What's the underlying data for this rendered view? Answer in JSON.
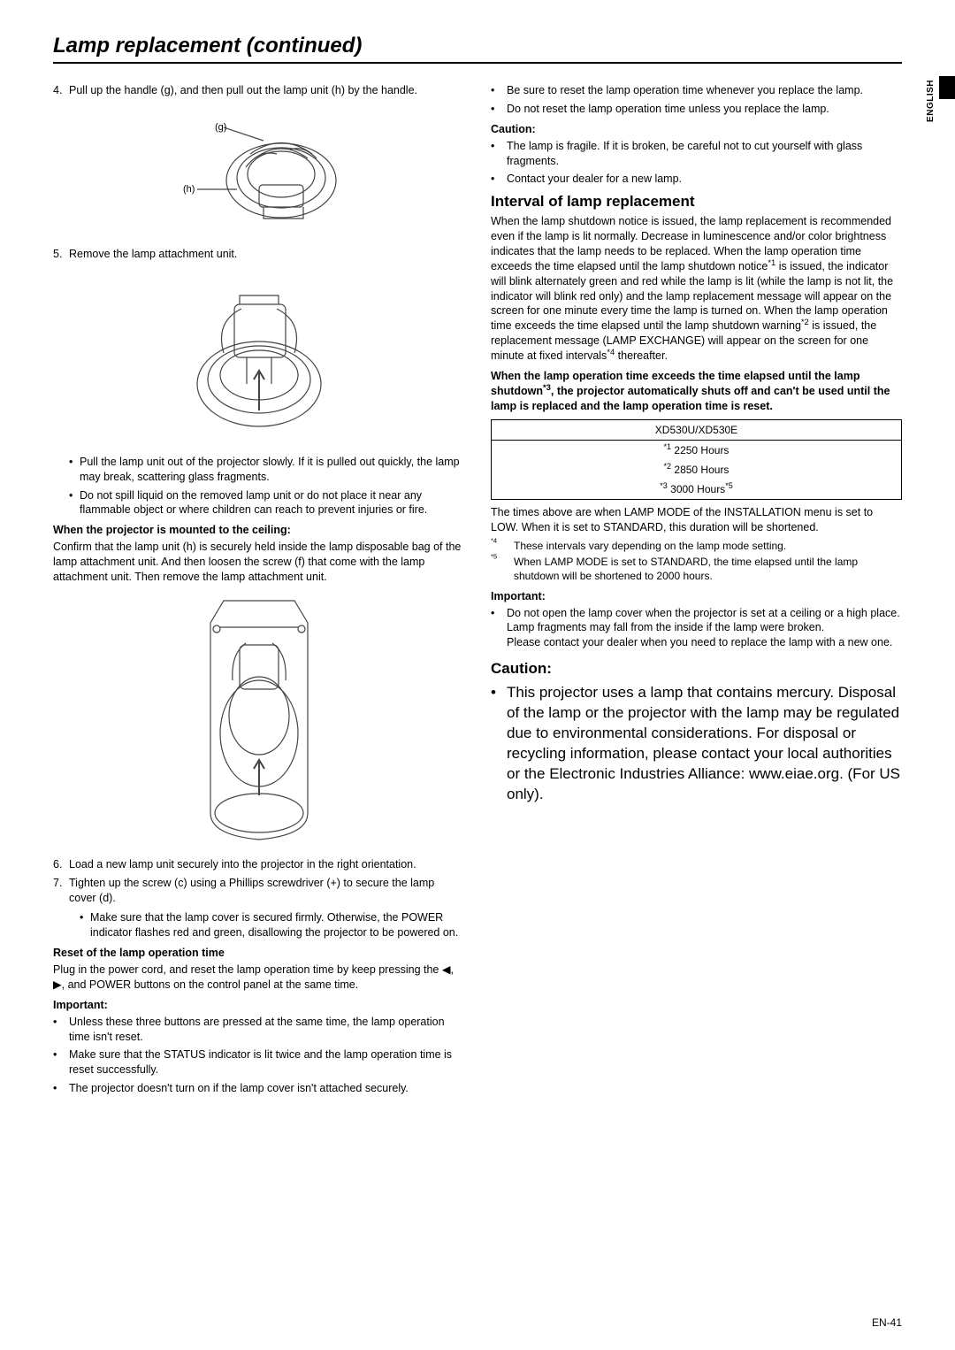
{
  "page_title": "Lamp replacement (continued)",
  "language_tab": "ENGLISH",
  "page_number": "EN-41",
  "left": {
    "step4": {
      "num": "4.",
      "text": "Pull up the handle (g), and then pull out the lamp unit (h) by the handle.",
      "label_g": "(g)",
      "label_h": "(h)"
    },
    "step5": {
      "num": "5.",
      "text": "Remove the lamp attachment unit.",
      "bullet1": "Pull the lamp unit out of the projector slowly. If it is pulled out quickly, the lamp may break, scattering glass fragments.",
      "bullet2": "Do not spill liquid on the removed lamp unit or do not place it near any flammable object or where children can reach to prevent injuries or fire."
    },
    "ceiling_head": "When the projector is mounted to the ceiling:",
    "ceiling_text": "Confirm that the lamp unit (h) is securely held inside the lamp disposable bag of the lamp attachment unit. And then loosen the screw (f) that come with the lamp attachment unit. Then remove the lamp attachment unit.",
    "step6": {
      "num": "6.",
      "text": "Load a new lamp unit securely into the projector in the right orientation."
    },
    "step7": {
      "num": "7.",
      "text": "Tighten up the screw (c) using a Phillips screwdriver (+) to secure the lamp cover (d).",
      "sub": "Make sure that the lamp cover is secured firmly. Otherwise, the POWER indicator flashes red and green, disallowing the projector to be powered on."
    },
    "reset_head": "Reset of the lamp operation time",
    "reset_text_a": "Plug in the power cord, and reset the lamp operation time by keep pressing the ",
    "reset_text_b": ", and POWER buttons on the control panel at the same time.",
    "arrows": {
      "left": "◀",
      "right": "▶",
      "comma": ", "
    },
    "important_head": "Important:",
    "imp1": "Unless these three buttons are pressed at the same time, the lamp operation time isn't reset.",
    "imp2": "Make sure that the STATUS indicator is lit twice and the lamp operation time is reset successfully.",
    "imp3": "The projector doesn't turn on if the lamp cover isn't attached securely."
  },
  "right": {
    "top_b1": "Be sure to reset the lamp operation time whenever you replace the lamp.",
    "top_b2": "Do not reset the lamp operation time unless you replace the lamp.",
    "caution_head": "Caution:",
    "c1": "The lamp is fragile. If it is broken, be careful not to cut yourself with glass fragments.",
    "c2": "Contact your dealer for a new lamp.",
    "interval_head": "Interval of lamp replacement",
    "interval_para": "When the lamp shutdown notice is issued, the lamp replacement is recommended even if the lamp is lit normally. Decrease in luminescence and/or color brightness indicates that the lamp needs to be replaced. When the lamp operation time exceeds the time elapsed until the lamp shutdown notice*1 is issued, the indicator will blink alternately green and red while the lamp is lit (while the lamp is not lit, the indicator will blink red only) and the lamp replacement message will appear on the screen for one minute every time the lamp is turned on. When the lamp operation time exceeds the time elapsed until the lamp shutdown warning*2 is issued, the replacement message (LAMP EXCHANGE) will appear on the screen for one minute at fixed intervals*4 thereafter.",
    "bold_para_a": "When the lamp operation time exceeds the time elapsed until the lamp shutdown",
    "bold_para_sup": "*3",
    "bold_para_b": ", the projector automatically shuts off and can't be used until the lamp is replaced and the lamp operation time is reset.",
    "table": {
      "model": "XD530U/XD530E",
      "r1_sup": "*1",
      "r1": " 2250 Hours",
      "r2_sup": "*2",
      "r2": " 2850 Hours",
      "r3_sup_a": "*3",
      "r3": " 3000 Hours",
      "r3_sup_b": "*5"
    },
    "times_note": "The times above are when LAMP MODE of the INSTALLATION menu is set to LOW. When it is set to STANDARD, this duration will be shortened.",
    "fn4_mark": "*4",
    "fn4": "These intervals vary depending on the lamp mode setting.",
    "fn5_mark": "*5",
    "fn5": "When LAMP MODE is set to STANDARD, the time elapsed until the lamp shutdown will be shortened to 2000 hours.",
    "important_head": "Important:",
    "imp_b1": "Do not open the lamp cover when the projector is set at a ceiling or a high place. Lamp fragments may fall from the inside if the lamp were broken.",
    "imp_b1b": "Please contact your dealer when you need to replace the lamp with a new one.",
    "caution_big": "Caution:",
    "big_text": "This projector uses a lamp that contains mercury. Disposal of the lamp or the projector with the lamp may be regulated due to environmental considerations. For disposal or recycling information, please contact your local authorities or the Electronic Industries Alliance: www.eiae.org. (For US only)."
  }
}
